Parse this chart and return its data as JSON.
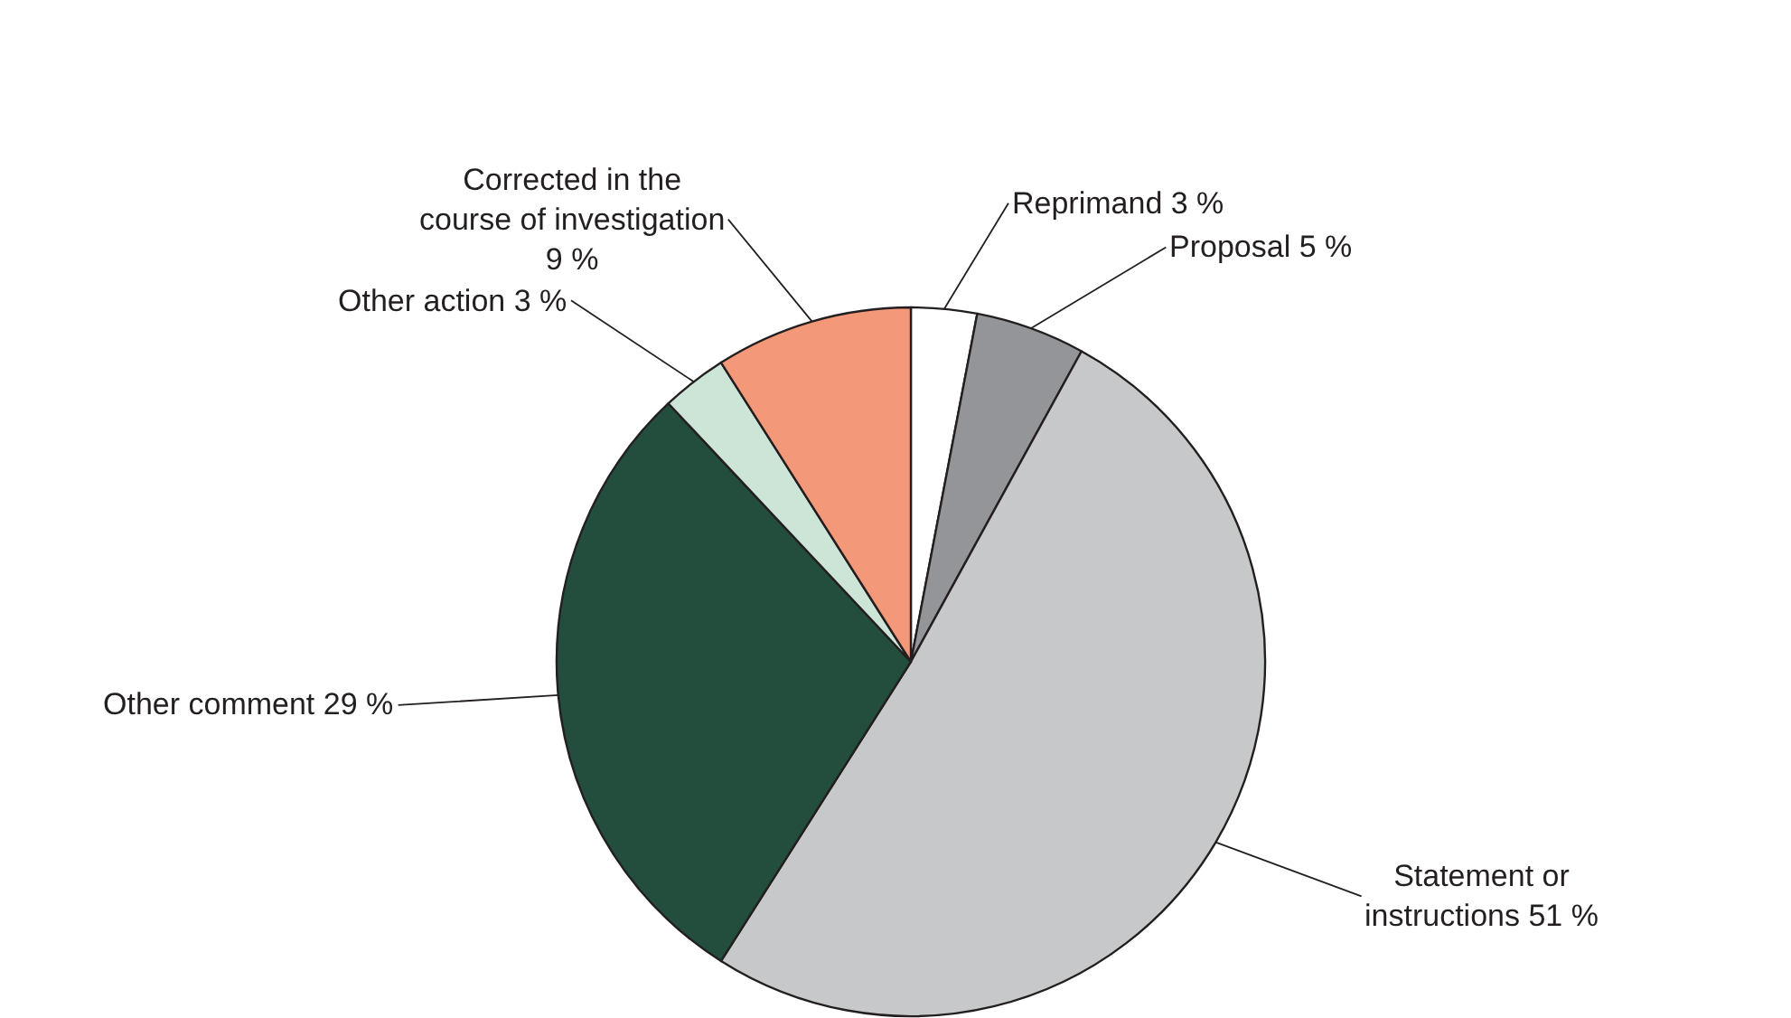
{
  "chart_data": {
    "type": "pie",
    "categories": [
      "Reprimand",
      "Proposal",
      "Statement or\ninstructions",
      "Other comment",
      "Other action",
      "Corrected in the\ncourse of investigation"
    ],
    "values": [
      3,
      5,
      51,
      29,
      3,
      9
    ],
    "value_labels": [
      "3 %",
      "5 %",
      "51 %",
      "29 %",
      "3 %",
      "9 %"
    ],
    "colors": [
      "#ffffff",
      "#939598",
      "#c7c8ca",
      "#234d3c",
      "#cce5d6",
      "#f4987a"
    ],
    "legend": false
  }
}
